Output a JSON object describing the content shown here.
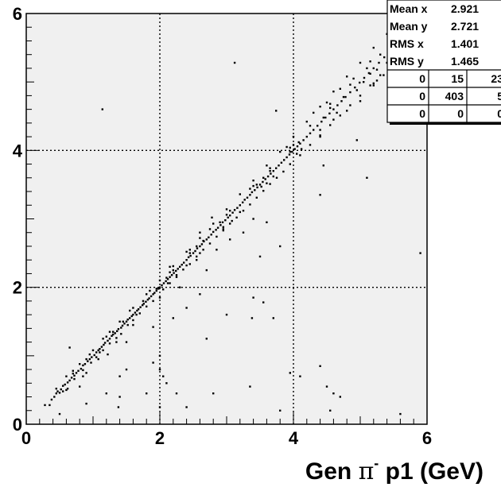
{
  "chart_data": {
    "type": "scatter",
    "title": "",
    "xlabel": "Gen π⁻ p1 (GeV)",
    "xlabel_parts": {
      "prefix": "Gen ",
      "greek": "π",
      "superscript": "-",
      "suffix": " p1 (GeV)"
    },
    "ylabel": "",
    "xlim": [
      0,
      6
    ],
    "ylim": [
      0,
      6
    ],
    "xticks": [
      {
        "value": 0,
        "label": "0"
      },
      {
        "value": 2,
        "label": "2"
      },
      {
        "value": 4,
        "label": "4"
      },
      {
        "value": 6,
        "label": "6"
      }
    ],
    "yticks": [
      {
        "value": 0,
        "label": "0"
      },
      {
        "value": 2,
        "label": "2"
      },
      {
        "value": 4,
        "label": "4"
      },
      {
        "value": 6,
        "label": "6"
      }
    ],
    "grid": true,
    "grid_style": "dotted",
    "plot_background": "#f0f0f0",
    "marker_color": "#000000",
    "points": [
      [
        0.28,
        0.28
      ],
      [
        0.38,
        0.36
      ],
      [
        0.42,
        0.4
      ],
      [
        0.45,
        0.45
      ],
      [
        0.47,
        0.48
      ],
      [
        0.52,
        0.51
      ],
      [
        0.55,
        0.56
      ],
      [
        0.58,
        0.58
      ],
      [
        0.62,
        0.61
      ],
      [
        0.65,
        0.64
      ],
      [
        0.68,
        0.68
      ],
      [
        0.72,
        0.71
      ],
      [
        0.75,
        0.75
      ],
      [
        0.78,
        0.78
      ],
      [
        0.82,
        0.81
      ],
      [
        0.85,
        0.86
      ],
      [
        0.88,
        0.88
      ],
      [
        0.92,
        0.92
      ],
      [
        0.95,
        0.95
      ],
      [
        0.98,
        0.98
      ],
      [
        1.02,
        1.01
      ],
      [
        1.05,
        1.05
      ],
      [
        1.08,
        1.08
      ],
      [
        1.1,
        1.1
      ],
      [
        1.13,
        1.13
      ],
      [
        1.16,
        1.16
      ],
      [
        1.18,
        1.19
      ],
      [
        1.22,
        1.22
      ],
      [
        1.25,
        1.25
      ],
      [
        1.28,
        1.29
      ],
      [
        1.3,
        1.31
      ],
      [
        1.33,
        1.33
      ],
      [
        1.36,
        1.36
      ],
      [
        1.38,
        1.39
      ],
      [
        1.42,
        1.41
      ],
      [
        1.44,
        1.44
      ],
      [
        1.47,
        1.47
      ],
      [
        1.5,
        1.5
      ],
      [
        1.52,
        1.53
      ],
      [
        1.55,
        1.55
      ],
      [
        1.58,
        1.58
      ],
      [
        1.6,
        1.6
      ],
      [
        1.63,
        1.63
      ],
      [
        1.66,
        1.66
      ],
      [
        1.68,
        1.68
      ],
      [
        1.71,
        1.71
      ],
      [
        1.74,
        1.74
      ],
      [
        1.76,
        1.76
      ],
      [
        1.79,
        1.79
      ],
      [
        1.82,
        1.82
      ],
      [
        1.84,
        1.84
      ],
      [
        1.87,
        1.87
      ],
      [
        1.9,
        1.9
      ],
      [
        1.92,
        1.92
      ],
      [
        1.95,
        1.95
      ],
      [
        1.98,
        1.98
      ],
      [
        2.0,
        2.0
      ],
      [
        2.03,
        2.03
      ],
      [
        2.06,
        2.06
      ],
      [
        2.09,
        2.09
      ],
      [
        2.12,
        2.12
      ],
      [
        2.15,
        2.15
      ],
      [
        2.18,
        2.18
      ],
      [
        2.21,
        2.21
      ],
      [
        2.24,
        2.24
      ],
      [
        2.27,
        2.27
      ],
      [
        2.3,
        2.3
      ],
      [
        2.33,
        2.33
      ],
      [
        2.36,
        2.36
      ],
      [
        2.4,
        2.4
      ],
      [
        2.43,
        2.44
      ],
      [
        2.46,
        2.46
      ],
      [
        2.5,
        2.5
      ],
      [
        2.53,
        2.53
      ],
      [
        2.56,
        2.57
      ],
      [
        2.6,
        2.6
      ],
      [
        2.63,
        2.63
      ],
      [
        2.66,
        2.67
      ],
      [
        2.7,
        2.7
      ],
      [
        2.73,
        2.73
      ],
      [
        2.77,
        2.77
      ],
      [
        2.8,
        2.81
      ],
      [
        2.84,
        2.84
      ],
      [
        2.87,
        2.87
      ],
      [
        2.91,
        2.91
      ],
      [
        2.94,
        2.95
      ],
      [
        2.98,
        2.98
      ],
      [
        3.02,
        3.02
      ],
      [
        3.05,
        3.05
      ],
      [
        3.09,
        3.09
      ],
      [
        3.12,
        3.13
      ],
      [
        3.16,
        3.16
      ],
      [
        3.2,
        3.2
      ],
      [
        3.24,
        3.24
      ],
      [
        3.27,
        3.28
      ],
      [
        3.31,
        3.31
      ],
      [
        3.35,
        3.35
      ],
      [
        3.38,
        3.39
      ],
      [
        3.42,
        3.42
      ],
      [
        3.46,
        3.46
      ],
      [
        3.5,
        3.5
      ],
      [
        3.54,
        3.54
      ],
      [
        3.58,
        3.58
      ],
      [
        3.62,
        3.62
      ],
      [
        3.66,
        3.66
      ],
      [
        3.7,
        3.7
      ],
      [
        3.74,
        3.74
      ],
      [
        3.78,
        3.78
      ],
      [
        3.82,
        3.82
      ],
      [
        3.86,
        3.86
      ],
      [
        3.9,
        3.9
      ],
      [
        3.94,
        3.94
      ],
      [
        3.98,
        3.98
      ],
      [
        4.02,
        4.02
      ],
      [
        4.06,
        4.06
      ],
      [
        4.1,
        4.1
      ],
      [
        4.15,
        4.15
      ],
      [
        4.2,
        4.2
      ],
      [
        4.25,
        4.25
      ],
      [
        4.3,
        4.3
      ],
      [
        4.36,
        4.36
      ],
      [
        4.42,
        4.42
      ],
      [
        4.48,
        4.48
      ],
      [
        4.54,
        4.54
      ],
      [
        4.6,
        4.6
      ],
      [
        4.66,
        4.66
      ],
      [
        4.72,
        4.72
      ],
      [
        4.78,
        4.78
      ],
      [
        4.85,
        4.85
      ],
      [
        4.92,
        4.92
      ],
      [
        4.99,
        4.99
      ],
      [
        5.06,
        5.06
      ],
      [
        5.13,
        5.13
      ],
      [
        5.2,
        5.2
      ],
      [
        5.28,
        5.28
      ],
      [
        5.36,
        5.36
      ],
      [
        5.44,
        5.44
      ],
      [
        0.55,
        0.48
      ],
      [
        0.62,
        0.52
      ],
      [
        0.72,
        0.66
      ],
      [
        0.85,
        0.79
      ],
      [
        0.97,
        0.9
      ],
      [
        1.05,
        0.98
      ],
      [
        1.15,
        1.08
      ],
      [
        1.25,
        1.18
      ],
      [
        1.35,
        1.26
      ],
      [
        1.42,
        1.32
      ],
      [
        1.52,
        1.45
      ],
      [
        1.6,
        1.52
      ],
      [
        1.7,
        1.62
      ],
      [
        1.8,
        1.72
      ],
      [
        1.9,
        1.8
      ],
      [
        2.05,
        1.97
      ],
      [
        2.15,
        2.06
      ],
      [
        2.25,
        2.15
      ],
      [
        2.35,
        2.26
      ],
      [
        2.45,
        2.34
      ],
      [
        2.55,
        2.45
      ],
      [
        2.65,
        2.55
      ],
      [
        2.75,
        2.64
      ],
      [
        2.85,
        2.74
      ],
      [
        2.95,
        2.83
      ],
      [
        3.05,
        2.93
      ],
      [
        3.15,
        3.02
      ],
      [
        3.25,
        3.12
      ],
      [
        3.35,
        3.21
      ],
      [
        3.45,
        3.31
      ],
      [
        3.55,
        3.41
      ],
      [
        3.65,
        3.51
      ],
      [
        3.75,
        3.6
      ],
      [
        3.85,
        3.69
      ],
      [
        3.95,
        3.8
      ],
      [
        4.1,
        3.93
      ],
      [
        4.25,
        4.08
      ],
      [
        4.4,
        4.22
      ],
      [
        4.55,
        4.37
      ],
      [
        4.7,
        4.51
      ],
      [
        4.85,
        4.66
      ],
      [
        5.0,
        4.8
      ],
      [
        5.15,
        4.95
      ],
      [
        5.3,
        5.1
      ],
      [
        0.45,
        0.52
      ],
      [
        0.6,
        0.7
      ],
      [
        0.8,
        0.88
      ],
      [
        1.0,
        1.08
      ],
      [
        1.2,
        1.28
      ],
      [
        1.4,
        1.5
      ],
      [
        1.6,
        1.7
      ],
      [
        1.8,
        1.9
      ],
      [
        2.0,
        2.1
      ],
      [
        2.2,
        2.31
      ],
      [
        2.4,
        2.52
      ],
      [
        2.6,
        2.72
      ],
      [
        2.8,
        2.93
      ],
      [
        3.0,
        3.14
      ],
      [
        3.2,
        3.36
      ],
      [
        3.4,
        3.56
      ],
      [
        3.6,
        3.78
      ],
      [
        3.8,
        3.98
      ],
      [
        4.0,
        4.2
      ],
      [
        4.2,
        4.42
      ],
      [
        4.4,
        4.64
      ],
      [
        4.6,
        4.86
      ],
      [
        4.8,
        5.08
      ],
      [
        5.0,
        5.28
      ],
      [
        5.2,
        5.5
      ],
      [
        5.4,
        5.7
      ],
      [
        3.4,
        3.48
      ],
      [
        3.45,
        3.5
      ],
      [
        3.52,
        3.47
      ],
      [
        3.55,
        3.6
      ],
      [
        3.6,
        3.52
      ],
      [
        3.65,
        3.7
      ],
      [
        3.7,
        3.62
      ],
      [
        3.9,
        4.05
      ],
      [
        3.95,
        3.98
      ],
      [
        4.0,
        4.08
      ],
      [
        4.05,
        3.95
      ],
      [
        4.08,
        4.12
      ],
      [
        4.12,
        4.02
      ],
      [
        2.9,
        2.95
      ],
      [
        2.95,
        2.88
      ],
      [
        3.0,
        3.06
      ],
      [
        3.08,
        2.97
      ],
      [
        2.55,
        2.6
      ],
      [
        2.6,
        2.5
      ],
      [
        2.65,
        2.68
      ],
      [
        2.4,
        2.32
      ],
      [
        2.45,
        2.5
      ],
      [
        2.2,
        2.25
      ],
      [
        2.25,
        2.18
      ],
      [
        2.1,
        2.14
      ],
      [
        2.12,
        2.06
      ],
      [
        1.95,
        1.98
      ],
      [
        1.75,
        1.8
      ],
      [
        1.65,
        1.6
      ],
      [
        1.45,
        1.5
      ],
      [
        1.3,
        1.35
      ],
      [
        1.1,
        1.05
      ],
      [
        0.9,
        0.95
      ],
      [
        0.7,
        0.74
      ],
      [
        0.5,
        0.46
      ],
      [
        4.3,
        4.55
      ],
      [
        4.4,
        4.3
      ],
      [
        4.5,
        4.7
      ],
      [
        4.6,
        4.45
      ],
      [
        4.7,
        4.9
      ],
      [
        4.8,
        4.58
      ],
      [
        4.9,
        5.05
      ],
      [
        5.0,
        4.72
      ],
      [
        5.1,
        5.2
      ],
      [
        5.2,
        4.95
      ],
      [
        5.3,
        5.4
      ],
      [
        5.35,
        5.1
      ],
      [
        5.45,
        5.55
      ],
      [
        5.5,
        5.25
      ],
      [
        5.6,
        5.65
      ],
      [
        5.62,
        5.45
      ],
      [
        5.65,
        5.75
      ],
      [
        5.68,
        5.55
      ],
      [
        5.72,
        5.68
      ],
      [
        5.75,
        5.8
      ],
      [
        5.8,
        5.6
      ],
      [
        5.85,
        5.88
      ],
      [
        5.9,
        5.72
      ],
      [
        5.95,
        5.92
      ],
      [
        4.45,
        4.48
      ],
      [
        4.55,
        4.62
      ],
      [
        4.65,
        4.55
      ],
      [
        4.75,
        4.78
      ],
      [
        4.95,
        4.88
      ],
      [
        5.05,
        5.0
      ],
      [
        5.15,
        5.12
      ],
      [
        5.25,
        5.18
      ],
      [
        1.14,
        4.6
      ],
      [
        3.12,
        5.28
      ],
      [
        3.74,
        4.58
      ],
      [
        5.2,
        4.98
      ],
      [
        4.45,
        3.78
      ],
      [
        5.1,
        3.6
      ],
      [
        4.4,
        3.35
      ],
      [
        3.2,
        3.1
      ],
      [
        3.6,
        2.95
      ],
      [
        3.8,
        2.6
      ],
      [
        3.5,
        2.45
      ],
      [
        2.85,
        2.55
      ],
      [
        2.7,
        2.25
      ],
      [
        2.3,
        2.0
      ],
      [
        2.4,
        1.7
      ],
      [
        2.2,
        1.55
      ],
      [
        2.6,
        1.9
      ],
      [
        3.0,
        1.6
      ],
      [
        3.4,
        1.85
      ],
      [
        3.55,
        1.78
      ],
      [
        3.7,
        1.55
      ],
      [
        3.38,
        1.55
      ],
      [
        2.7,
        1.25
      ],
      [
        1.9,
        1.42
      ],
      [
        1.5,
        1.2
      ],
      [
        1.22,
        1.02
      ],
      [
        1.15,
        1.25
      ],
      [
        0.65,
        1.12
      ],
      [
        0.9,
        0.75
      ],
      [
        1.4,
        0.7
      ],
      [
        1.5,
        0.8
      ],
      [
        1.9,
        0.9
      ],
      [
        2.0,
        1.0
      ],
      [
        2.05,
        0.7
      ],
      [
        2.0,
        0.8
      ],
      [
        2.1,
        0.6
      ],
      [
        2.25,
        0.45
      ],
      [
        2.4,
        0.25
      ],
      [
        2.0,
        0.25
      ],
      [
        1.8,
        0.45
      ],
      [
        1.4,
        0.4
      ],
      [
        1.2,
        0.45
      ],
      [
        1.38,
        0.25
      ],
      [
        0.9,
        0.3
      ],
      [
        0.5,
        0.15
      ],
      [
        0.8,
        0.55
      ],
      [
        2.8,
        0.45
      ],
      [
        3.35,
        0.55
      ],
      [
        3.8,
        0.2
      ],
      [
        3.95,
        0.75
      ],
      [
        4.1,
        0.7
      ],
      [
        4.4,
        0.85
      ],
      [
        4.5,
        0.55
      ],
      [
        4.6,
        0.45
      ],
      [
        4.7,
        0.4
      ],
      [
        4.55,
        0.2
      ],
      [
        5.6,
        0.15
      ],
      [
        5.9,
        2.5
      ],
      [
        4.4,
        4.2
      ],
      [
        4.95,
        4.15
      ],
      [
        3.4,
        3.0
      ],
      [
        3.25,
        2.8
      ],
      [
        3.05,
        2.7
      ],
      [
        2.95,
        2.85
      ],
      [
        2.78,
        3.02
      ],
      [
        2.6,
        2.8
      ],
      [
        2.55,
        2.4
      ],
      [
        2.15,
        2.3
      ],
      [
        2.0,
        1.85
      ],
      [
        1.6,
        1.45
      ],
      [
        1.35,
        1.2
      ],
      [
        1.08,
        0.95
      ],
      [
        0.85,
        0.7
      ],
      [
        0.6,
        0.5
      ],
      [
        0.35,
        0.28
      ],
      [
        0.7,
        0.78
      ],
      [
        0.95,
        1.02
      ],
      [
        1.25,
        1.35
      ],
      [
        1.55,
        1.66
      ],
      [
        1.85,
        1.95
      ],
      [
        2.15,
        2.22
      ],
      [
        2.45,
        2.55
      ],
      [
        2.75,
        2.85
      ],
      [
        3.05,
        3.12
      ],
      [
        3.35,
        3.44
      ],
      [
        3.65,
        3.74
      ],
      [
        3.95,
        4.04
      ],
      [
        4.25,
        4.36
      ],
      [
        4.55,
        4.68
      ],
      [
        4.85,
        4.96
      ],
      [
        5.15,
        5.3
      ],
      [
        5.45,
        5.62
      ],
      [
        5.7,
        5.9
      ],
      [
        5.78,
        5.7
      ],
      [
        5.82,
        5.95
      ],
      [
        5.88,
        5.82
      ],
      [
        5.92,
        6.0
      ],
      [
        5.55,
        5.38
      ],
      [
        5.4,
        5.28
      ],
      [
        5.25,
        5.02
      ]
    ],
    "stats_box": {
      "rows": [
        {
          "label": "Mean x",
          "value": "2.921"
        },
        {
          "label": "Mean y",
          "value": "2.721"
        },
        {
          "label": "RMS x",
          "value": "1.401"
        },
        {
          "label": "RMS y",
          "value": "1.465"
        }
      ],
      "overflow_grid": [
        [
          "0",
          "15",
          "23"
        ],
        [
          "0",
          "403",
          "5"
        ],
        [
          "0",
          "0",
          "0"
        ]
      ]
    }
  }
}
